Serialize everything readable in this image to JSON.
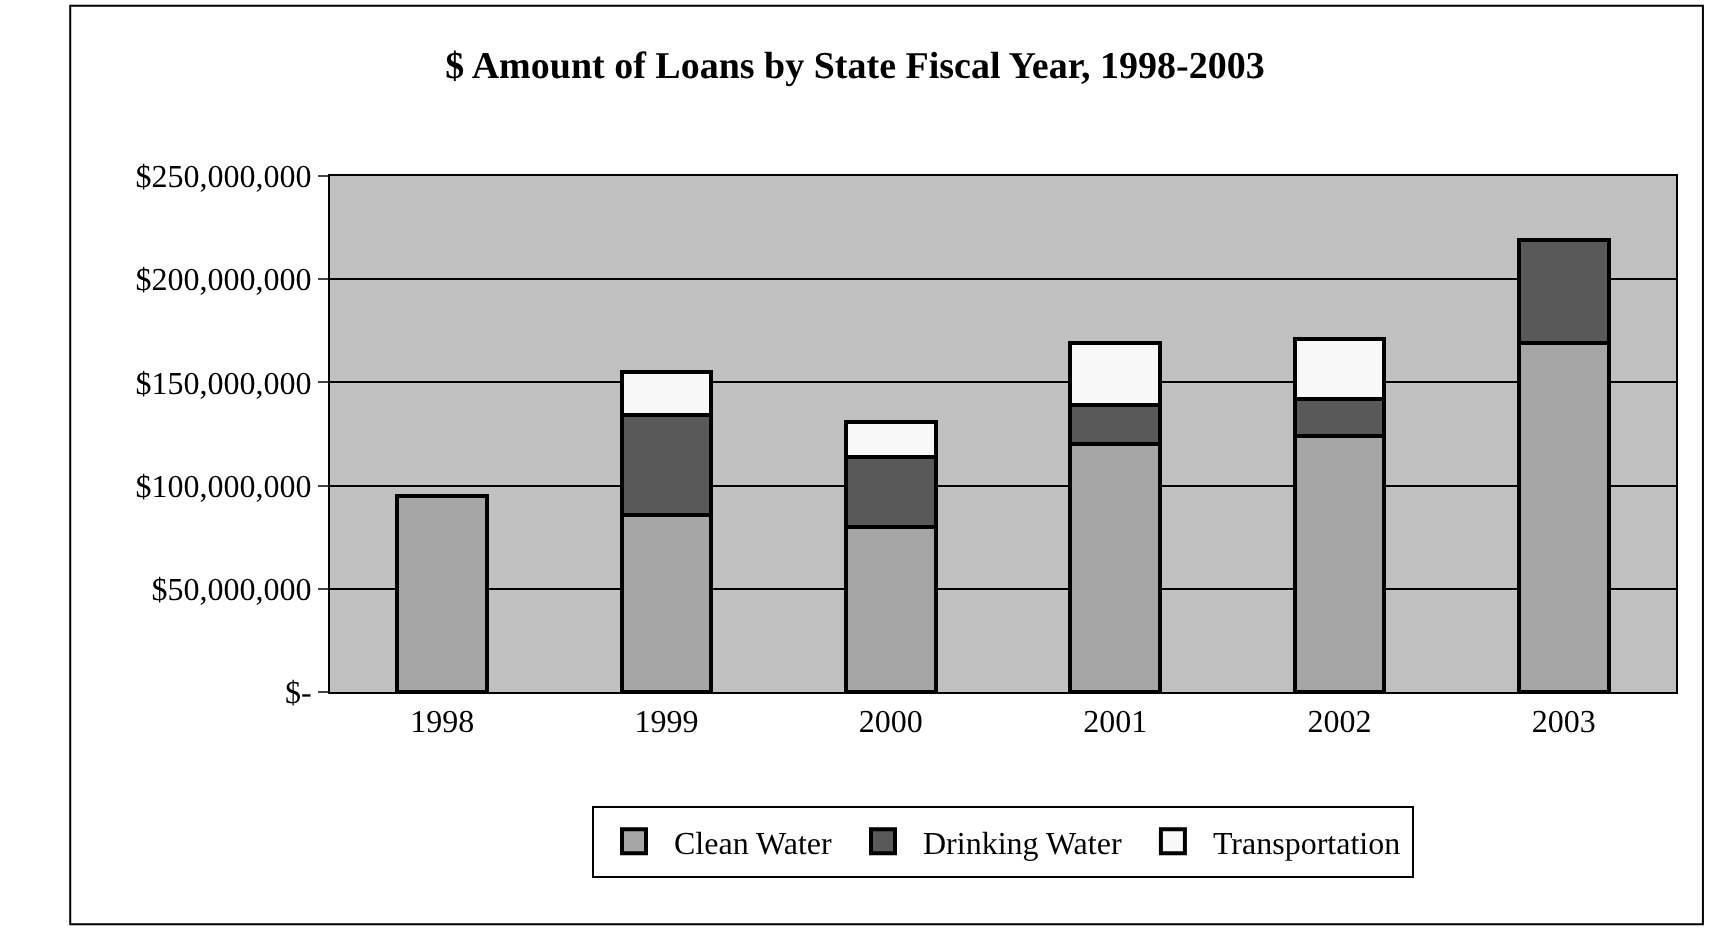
{
  "chart_data": {
    "type": "bar",
    "title": "$ Amount of Loans by State Fiscal Year, 1998-2003",
    "categories": [
      "1998",
      "1999",
      "2000",
      "2001",
      "2002",
      "2003"
    ],
    "stacked": true,
    "series": [
      {
        "name": "Clean Water",
        "color": "#a6a6a6",
        "values": [
          95000000,
          86000000,
          80000000,
          120000000,
          124000000,
          169000000
        ]
      },
      {
        "name": "Drinking Water",
        "color": "#595959",
        "values": [
          null,
          48000000,
          34000000,
          19000000,
          18000000,
          50000000
        ]
      },
      {
        "name": "Transportation",
        "color": "#f8f8f8",
        "values": [
          null,
          21000000,
          17000000,
          30000000,
          29000000,
          null
        ]
      }
    ],
    "ylim": [
      0,
      250000000
    ],
    "yticks": [
      {
        "value": 0,
        "label": "$-"
      },
      {
        "value": 50000000,
        "label": "$50,000,000"
      },
      {
        "value": 100000000,
        "label": "$100,000,000"
      },
      {
        "value": 150000000,
        "label": "$150,000,000"
      },
      {
        "value": 200000000,
        "label": "$200,000,000"
      },
      {
        "value": 250000000,
        "label": "$250,000,000"
      }
    ],
    "grid": "y",
    "legend": "bottom"
  }
}
